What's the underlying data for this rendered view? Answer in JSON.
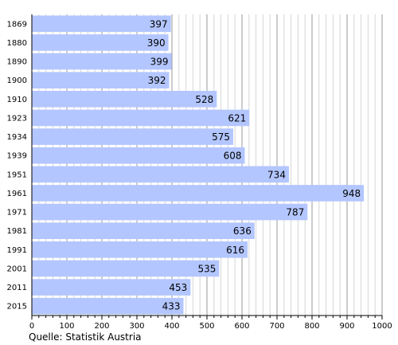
{
  "chart_data": {
    "type": "bar",
    "orientation": "horizontal",
    "categories": [
      "1869",
      "1880",
      "1890",
      "1900",
      "1910",
      "1923",
      "1934",
      "1939",
      "1951",
      "1961",
      "1971",
      "1981",
      "1991",
      "2001",
      "2011",
      "2015"
    ],
    "values": [
      397,
      390,
      399,
      392,
      528,
      621,
      575,
      608,
      734,
      948,
      787,
      636,
      616,
      535,
      453,
      433
    ],
    "xlim": [
      0,
      1000
    ],
    "x_ticks": [
      0,
      100,
      200,
      300,
      400,
      500,
      600,
      700,
      800,
      900,
      1000
    ],
    "grid": true,
    "bar_color": "#b3c6ff",
    "title": "",
    "xlabel": "",
    "ylabel": ""
  },
  "source": "Quelle: Statistik Austria"
}
